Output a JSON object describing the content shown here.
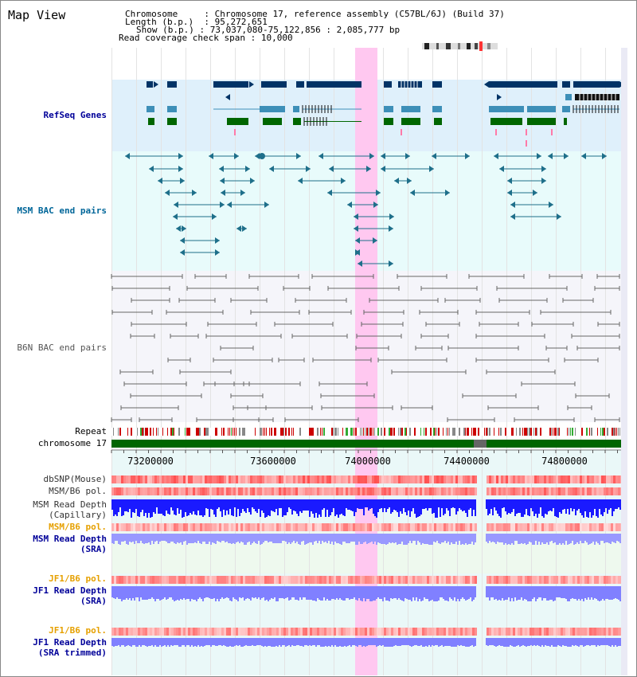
{
  "app": {
    "title": "Map View"
  },
  "header": {
    "chromosome_key": "Chromosome",
    "chromosome_value": "Chromosome 17, reference assembly (C57BL/6J) (Build 37)",
    "length_key": "Length (b.p.)",
    "length_value": "95,272,651",
    "show_key": "Show (b.p.)",
    "show_value": "73,037,080-75,122,856 : 2,085,777 bp",
    "coverage_key": "Read coverage check span",
    "coverage_value": "10,000"
  },
  "tracks": {
    "refseq": "RefSeq Genes",
    "msm_bac": "MSM BAC end pairs",
    "b6n_bac": "B6N BAC end pairs",
    "repeat": "Repeat",
    "chromosome": "chromosome 17",
    "dbsnp": "dbSNP(Mouse)",
    "msm_b6_pol": "MSM/B6 pol.",
    "msm_depth_cap_1": "MSM Read Depth",
    "msm_depth_cap_2": "(Capillary)",
    "msm_b6_pol_sra": "MSM/B6 pol.",
    "msm_depth_sra_1": "MSM Read Depth",
    "msm_depth_sra_2": "(SRA)",
    "jf1_b6_pol_1": "JF1/B6 pol.",
    "jf1_depth_1": "JF1 Read Depth",
    "jf1_depth_2": "(SRA)",
    "jf1_b6_pol_2": "JF1/B6 pol.",
    "jf1_trim_1": "JF1 Read Depth",
    "jf1_trim_2": "(SRA trimmed)"
  },
  "axis": {
    "ticks": [
      "73200000",
      "73600000",
      "74000000",
      "74400000",
      "74800000"
    ]
  },
  "colors": {
    "refseq_bg": "#dff0fb",
    "msm_bac_bg": "#e8fbfb",
    "b6n_bac_bg": "#f5f5fa",
    "lower_bg": "#eaf8f8",
    "highlight": "#ffc8f0",
    "gene_dark": "#003366",
    "gene_mid": "#3d8fb8",
    "gene_green": "#006600",
    "msm_bac": "#1e6f8a",
    "b6n_bac": "#666666",
    "chrom_bar": "#006600",
    "msm_label": "#006699",
    "navy_label": "#000099",
    "orange_label": "#e6a000"
  }
}
